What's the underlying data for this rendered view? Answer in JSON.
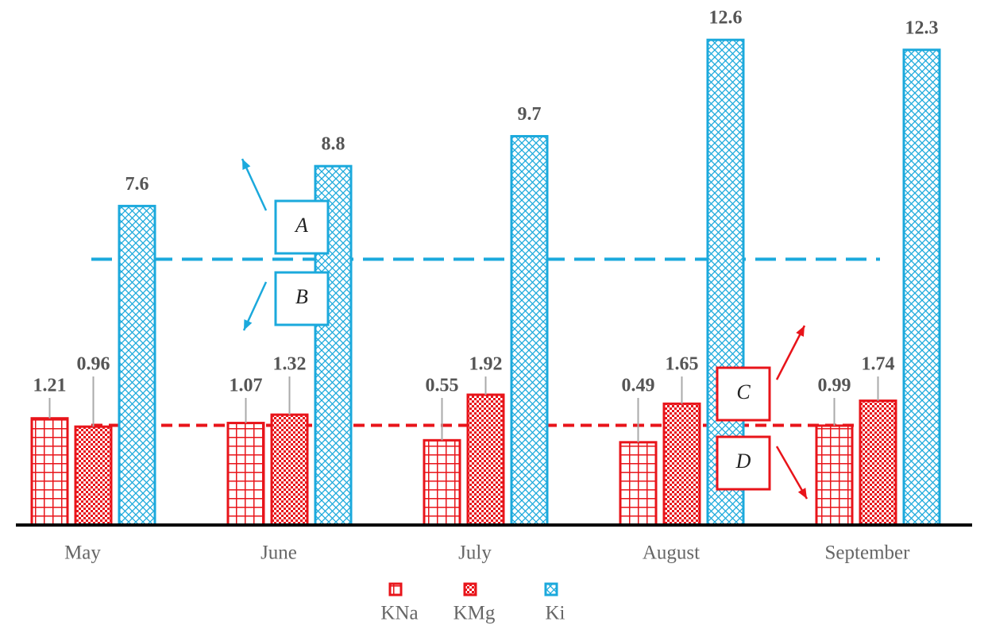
{
  "chart_data": {
    "type": "bar",
    "categories": [
      "May",
      "June",
      "July",
      "August",
      "September"
    ],
    "series": [
      {
        "name": "KNa",
        "color": "#e8141a",
        "values": [
          1.21,
          1.07,
          0.55,
          0.49,
          0.99
        ]
      },
      {
        "name": "KMg",
        "color": "#e8141a",
        "values": [
          0.96,
          1.32,
          1.92,
          1.65,
          1.74
        ]
      },
      {
        "name": "Ki",
        "color": "#1ba9dc",
        "values": [
          7.6,
          8.8,
          9.7,
          12.6,
          12.3
        ]
      }
    ],
    "ylim": [
      -2,
      13.8
    ],
    "reference_lines": [
      {
        "value": 6,
        "color": "#1ba9dc"
      },
      {
        "value": 1,
        "color": "#e8141a"
      }
    ],
    "annotations": [
      {
        "text": "A"
      },
      {
        "text": "B"
      },
      {
        "text": "C"
      },
      {
        "text": "D"
      }
    ],
    "legend": "bottom"
  }
}
